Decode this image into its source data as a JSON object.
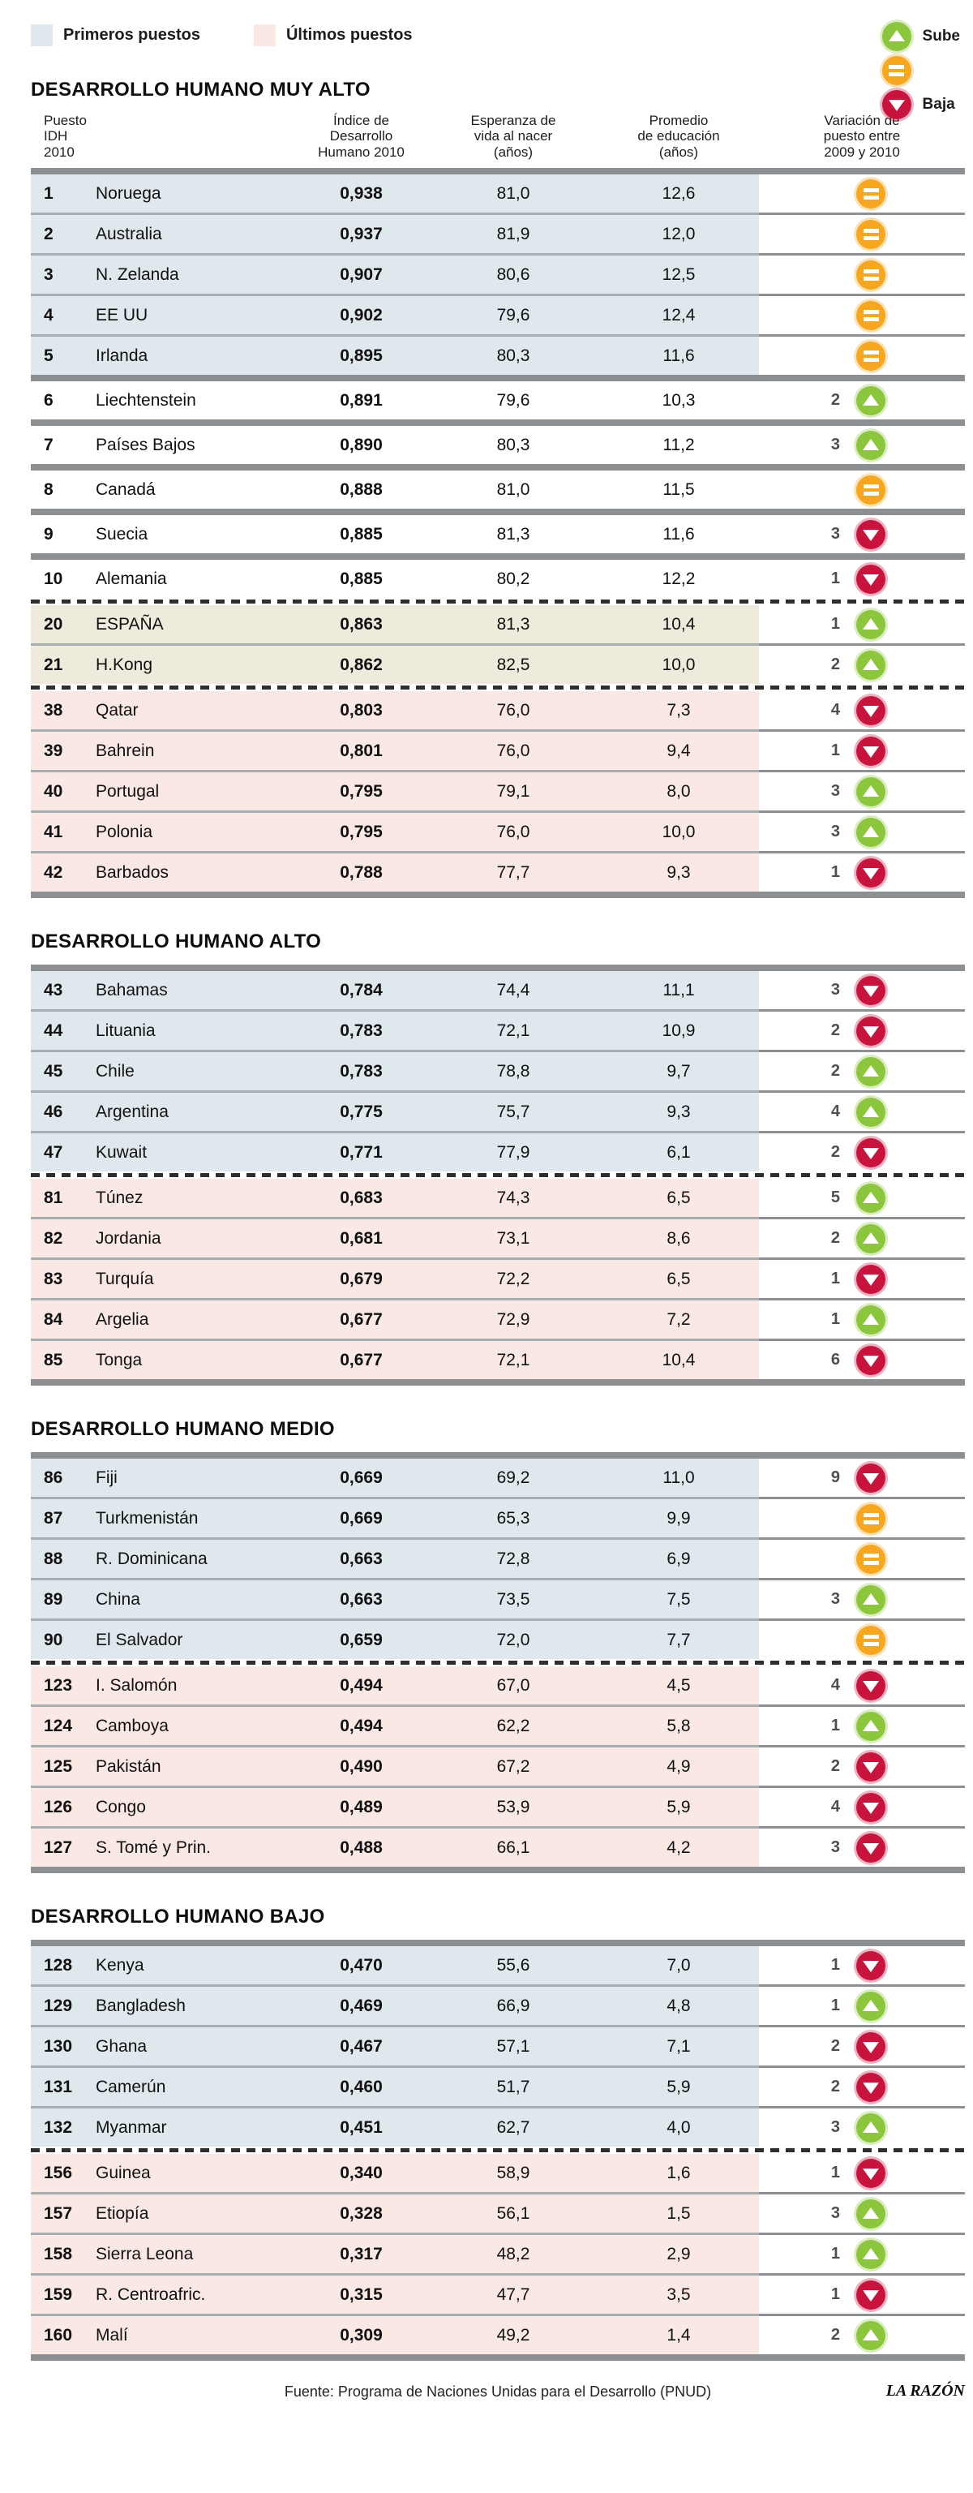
{
  "legend": {
    "primeros": "Primeros puestos",
    "ultimos": "Últimos puestos",
    "sube": "Sube",
    "baja": "Baja"
  },
  "columns": {
    "c1": [
      "Puesto",
      "IDH",
      "2010"
    ],
    "c2": [
      "Índice de",
      "Desarrollo",
      "Humano 2010"
    ],
    "c3": [
      "Esperanza de",
      "vida al nacer",
      "(años)"
    ],
    "c4": [
      "Promedio",
      "de educación",
      "(años)"
    ],
    "c5": [
      "Variación de",
      "puesto entre",
      "2009 y 2010"
    ]
  },
  "colors": {
    "primeros_bg": "#dfe8ec",
    "ultimos_bg": "#f9e8e4",
    "espana_bg": "#eeebdc",
    "sube": "#8cc63c",
    "igual": "#f6a71f",
    "baja": "#c8143c",
    "separator_bar": "#8d9093"
  },
  "footer": {
    "source": "Fuente: Programa de Naciones Unidas para el Desarrollo (PNUD)",
    "brand": "LA RAZÓN"
  },
  "chart_data": {
    "type": "table",
    "title": "Índice de Desarrollo Humano 2010",
    "column_names": [
      "Puesto IDH 2010",
      "Índice de Desarrollo Humano 2010",
      "Esperanza de vida al nacer (años)",
      "Promedio de educación (años)",
      "Variación de puesto entre 2009 y 2010"
    ],
    "sections": [
      {
        "title": "DESARROLLO HUMANO MUY ALTO",
        "rows": [
          {
            "sep": "none",
            "bg": "blue",
            "rank": "1",
            "country": "Noruega",
            "idh": "0,938",
            "vida": "81,0",
            "edu": "12,6",
            "chg": "",
            "dir": "same"
          },
          {
            "sep": "line",
            "bg": "blue",
            "rank": "2",
            "country": "Australia",
            "idh": "0,937",
            "vida": "81,9",
            "edu": "12,0",
            "chg": "",
            "dir": "same"
          },
          {
            "sep": "line",
            "bg": "blue",
            "rank": "3",
            "country": "N. Zelanda",
            "idh": "0,907",
            "vida": "80,6",
            "edu": "12,5",
            "chg": "",
            "dir": "same"
          },
          {
            "sep": "line",
            "bg": "blue",
            "rank": "4",
            "country": "EE UU",
            "idh": "0,902",
            "vida": "79,6",
            "edu": "12,4",
            "chg": "",
            "dir": "same"
          },
          {
            "sep": "line",
            "bg": "blue",
            "rank": "5",
            "country": "Irlanda",
            "idh": "0,895",
            "vida": "80,3",
            "edu": "11,6",
            "chg": "",
            "dir": "same"
          },
          {
            "sep": "bar",
            "bg": "white",
            "rank": "6",
            "country": "Liechtenstein",
            "idh": "0,891",
            "vida": "79,6",
            "edu": "10,3",
            "chg": "2",
            "dir": "up"
          },
          {
            "sep": "bar",
            "bg": "white",
            "rank": "7",
            "country": "Países Bajos",
            "idh": "0,890",
            "vida": "80,3",
            "edu": "11,2",
            "chg": "3",
            "dir": "up"
          },
          {
            "sep": "bar",
            "bg": "white",
            "rank": "8",
            "country": "Canadá",
            "idh": "0,888",
            "vida": "81,0",
            "edu": "11,5",
            "chg": "",
            "dir": "same"
          },
          {
            "sep": "bar",
            "bg": "white",
            "rank": "9",
            "country": "Suecia",
            "idh": "0,885",
            "vida": "81,3",
            "edu": "11,6",
            "chg": "3",
            "dir": "down"
          },
          {
            "sep": "bar",
            "bg": "white",
            "rank": "10",
            "country": "Alemania",
            "idh": "0,885",
            "vida": "80,2",
            "edu": "12,2",
            "chg": "1",
            "dir": "down"
          },
          {
            "sep": "dashed",
            "bg": "beige",
            "rank": "20",
            "country": "ESPAÑA",
            "idh": "0,863",
            "vida": "81,3",
            "edu": "10,4",
            "chg": "1",
            "dir": "up"
          },
          {
            "sep": "line",
            "bg": "beige",
            "rank": "21",
            "country": "H.Kong",
            "idh": "0,862",
            "vida": "82,5",
            "edu": "10,0",
            "chg": "2",
            "dir": "up"
          },
          {
            "sep": "dashed",
            "bg": "pink",
            "rank": "38",
            "country": "Qatar",
            "idh": "0,803",
            "vida": "76,0",
            "edu": "7,3",
            "chg": "4",
            "dir": "down"
          },
          {
            "sep": "line",
            "bg": "pink",
            "rank": "39",
            "country": "Bahrein",
            "idh": "0,801",
            "vida": "76,0",
            "edu": "9,4",
            "chg": "1",
            "dir": "down"
          },
          {
            "sep": "line",
            "bg": "pink",
            "rank": "40",
            "country": "Portugal",
            "idh": "0,795",
            "vida": "79,1",
            "edu": "8,0",
            "chg": "3",
            "dir": "up"
          },
          {
            "sep": "line",
            "bg": "pink",
            "rank": "41",
            "country": "Polonia",
            "idh": "0,795",
            "vida": "76,0",
            "edu": "10,0",
            "chg": "3",
            "dir": "up"
          },
          {
            "sep": "line",
            "bg": "pink",
            "rank": "42",
            "country": "Barbados",
            "idh": "0,788",
            "vida": "77,7",
            "edu": "9,3",
            "chg": "1",
            "dir": "down"
          }
        ]
      },
      {
        "title": "DESARROLLO HUMANO ALTO",
        "rows": [
          {
            "sep": "none",
            "bg": "blue",
            "rank": "43",
            "country": "Bahamas",
            "idh": "0,784",
            "vida": "74,4",
            "edu": "11,1",
            "chg": "3",
            "dir": "down"
          },
          {
            "sep": "line",
            "bg": "blue",
            "rank": "44",
            "country": "Lituania",
            "idh": "0,783",
            "vida": "72,1",
            "edu": "10,9",
            "chg": "2",
            "dir": "down"
          },
          {
            "sep": "line",
            "bg": "blue",
            "rank": "45",
            "country": "Chile",
            "idh": "0,783",
            "vida": "78,8",
            "edu": "9,7",
            "chg": "2",
            "dir": "up"
          },
          {
            "sep": "line",
            "bg": "blue",
            "rank": "46",
            "country": "Argentina",
            "idh": "0,775",
            "vida": "75,7",
            "edu": "9,3",
            "chg": "4",
            "dir": "up"
          },
          {
            "sep": "line",
            "bg": "blue",
            "rank": "47",
            "country": "Kuwait",
            "idh": "0,771",
            "vida": "77,9",
            "edu": "6,1",
            "chg": "2",
            "dir": "down"
          },
          {
            "sep": "dashed",
            "bg": "pink",
            "rank": "81",
            "country": "Túnez",
            "idh": "0,683",
            "vida": "74,3",
            "edu": "6,5",
            "chg": "5",
            "dir": "up"
          },
          {
            "sep": "line",
            "bg": "pink",
            "rank": "82",
            "country": "Jordania",
            "idh": "0,681",
            "vida": "73,1",
            "edu": "8,6",
            "chg": "2",
            "dir": "up"
          },
          {
            "sep": "line",
            "bg": "pink",
            "rank": "83",
            "country": "Turquía",
            "idh": "0,679",
            "vida": "72,2",
            "edu": "6,5",
            "chg": "1",
            "dir": "down"
          },
          {
            "sep": "line",
            "bg": "pink",
            "rank": "84",
            "country": "Argelia",
            "idh": "0,677",
            "vida": "72,9",
            "edu": "7,2",
            "chg": "1",
            "dir": "up"
          },
          {
            "sep": "line",
            "bg": "pink",
            "rank": "85",
            "country": "Tonga",
            "idh": "0,677",
            "vida": "72,1",
            "edu": "10,4",
            "chg": "6",
            "dir": "down"
          }
        ]
      },
      {
        "title": "DESARROLLO HUMANO MEDIO",
        "rows": [
          {
            "sep": "none",
            "bg": "blue",
            "rank": "86",
            "country": "Fiji",
            "idh": "0,669",
            "vida": "69,2",
            "edu": "11,0",
            "chg": "9",
            "dir": "down"
          },
          {
            "sep": "line",
            "bg": "blue",
            "rank": "87",
            "country": "Turkmenistán",
            "idh": "0,669",
            "vida": "65,3",
            "edu": "9,9",
            "chg": "",
            "dir": "same"
          },
          {
            "sep": "line",
            "bg": "blue",
            "rank": "88",
            "country": "R. Dominicana",
            "idh": "0,663",
            "vida": "72,8",
            "edu": "6,9",
            "chg": "",
            "dir": "same"
          },
          {
            "sep": "line",
            "bg": "blue",
            "rank": "89",
            "country": "China",
            "idh": "0,663",
            "vida": "73,5",
            "edu": "7,5",
            "chg": "3",
            "dir": "up"
          },
          {
            "sep": "line",
            "bg": "blue",
            "rank": "90",
            "country": "El Salvador",
            "idh": "0,659",
            "vida": "72,0",
            "edu": "7,7",
            "chg": "",
            "dir": "same"
          },
          {
            "sep": "dashed",
            "bg": "pink",
            "rank": "123",
            "country": "I. Salomón",
            "idh": "0,494",
            "vida": "67,0",
            "edu": "4,5",
            "chg": "4",
            "dir": "down"
          },
          {
            "sep": "line",
            "bg": "pink",
            "rank": "124",
            "country": "Camboya",
            "idh": "0,494",
            "vida": "62,2",
            "edu": "5,8",
            "chg": "1",
            "dir": "up"
          },
          {
            "sep": "line",
            "bg": "pink",
            "rank": "125",
            "country": "Pakistán",
            "idh": "0,490",
            "vida": "67,2",
            "edu": "4,9",
            "chg": "2",
            "dir": "down"
          },
          {
            "sep": "line",
            "bg": "pink",
            "rank": "126",
            "country": "Congo",
            "idh": "0,489",
            "vida": "53,9",
            "edu": "5,9",
            "chg": "4",
            "dir": "down"
          },
          {
            "sep": "line",
            "bg": "pink",
            "rank": "127",
            "country": "S. Tomé y Prin.",
            "idh": "0,488",
            "vida": "66,1",
            "edu": "4,2",
            "chg": "3",
            "dir": "down"
          }
        ]
      },
      {
        "title": "DESARROLLO HUMANO BAJO",
        "rows": [
          {
            "sep": "none",
            "bg": "blue",
            "rank": "128",
            "country": "Kenya",
            "idh": "0,470",
            "vida": "55,6",
            "edu": "7,0",
            "chg": "1",
            "dir": "down"
          },
          {
            "sep": "line",
            "bg": "blue",
            "rank": "129",
            "country": "Bangladesh",
            "idh": "0,469",
            "vida": "66,9",
            "edu": "4,8",
            "chg": "1",
            "dir": "up"
          },
          {
            "sep": "line",
            "bg": "blue",
            "rank": "130",
            "country": "Ghana",
            "idh": "0,467",
            "vida": "57,1",
            "edu": "7,1",
            "chg": "2",
            "dir": "down"
          },
          {
            "sep": "line",
            "bg": "blue",
            "rank": "131",
            "country": "Camerún",
            "idh": "0,460",
            "vida": "51,7",
            "edu": "5,9",
            "chg": "2",
            "dir": "down"
          },
          {
            "sep": "line",
            "bg": "blue",
            "rank": "132",
            "country": "Myanmar",
            "idh": "0,451",
            "vida": "62,7",
            "edu": "4,0",
            "chg": "3",
            "dir": "up"
          },
          {
            "sep": "dashed",
            "bg": "pink",
            "rank": "156",
            "country": "Guinea",
            "idh": "0,340",
            "vida": "58,9",
            "edu": "1,6",
            "chg": "1",
            "dir": "down"
          },
          {
            "sep": "line",
            "bg": "pink",
            "rank": "157",
            "country": "Etiopía",
            "idh": "0,328",
            "vida": "56,1",
            "edu": "1,5",
            "chg": "3",
            "dir": "up"
          },
          {
            "sep": "line",
            "bg": "pink",
            "rank": "158",
            "country": "Sierra Leona",
            "idh": "0,317",
            "vida": "48,2",
            "edu": "2,9",
            "chg": "1",
            "dir": "up"
          },
          {
            "sep": "line",
            "bg": "pink",
            "rank": "159",
            "country": "R. Centroafric.",
            "idh": "0,315",
            "vida": "47,7",
            "edu": "3,5",
            "chg": "1",
            "dir": "down"
          },
          {
            "sep": "line",
            "bg": "pink",
            "rank": "160",
            "country": "Malí",
            "idh": "0,309",
            "vida": "49,2",
            "edu": "1,4",
            "chg": "2",
            "dir": "up"
          }
        ]
      }
    ]
  }
}
